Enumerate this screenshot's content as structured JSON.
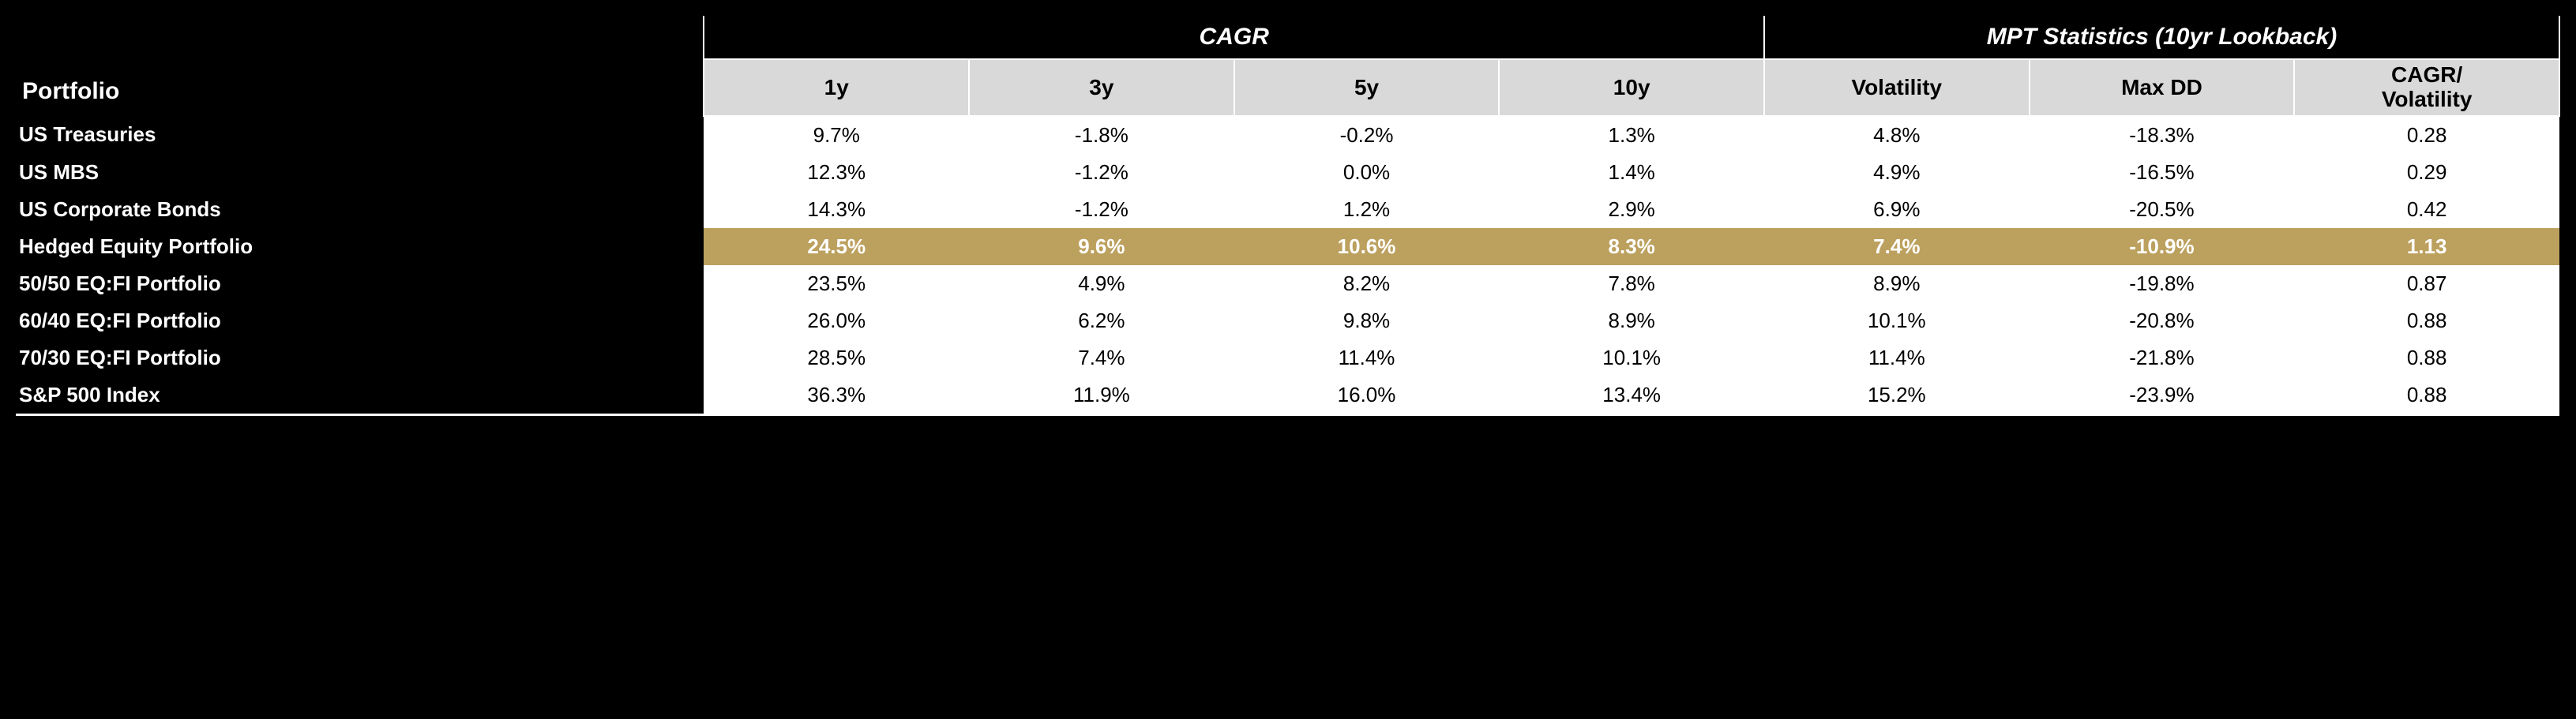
{
  "header": {
    "portfolio_label": "Portfolio",
    "group1_label": "CAGR",
    "group2_label": "MPT Statistics (10yr Lookback)",
    "sub": {
      "c1": "1y",
      "c2": "3y",
      "c3": "5y",
      "c4": "10y",
      "c5": "Volatility",
      "c6": "Max DD",
      "c7_l1": "CAGR/",
      "c7_l2": "Volatility"
    }
  },
  "rows": [
    {
      "label": "US Treasuries",
      "c1": "9.7%",
      "c2": "-1.8%",
      "c3": "-0.2%",
      "c4": "1.3%",
      "c5": "4.8%",
      "c6": "-18.3%",
      "c7": "0.28",
      "hl": false
    },
    {
      "label": "US MBS",
      "c1": "12.3%",
      "c2": "-1.2%",
      "c3": "0.0%",
      "c4": "1.4%",
      "c5": "4.9%",
      "c6": "-16.5%",
      "c7": "0.29",
      "hl": false
    },
    {
      "label": "US Corporate Bonds",
      "c1": "14.3%",
      "c2": "-1.2%",
      "c3": "1.2%",
      "c4": "2.9%",
      "c5": "6.9%",
      "c6": "-20.5%",
      "c7": "0.42",
      "hl": false
    },
    {
      "label": "Hedged Equity Portfolio",
      "c1": "24.5%",
      "c2": "9.6%",
      "c3": "10.6%",
      "c4": "8.3%",
      "c5": "7.4%",
      "c6": "-10.9%",
      "c7": "1.13",
      "hl": true
    },
    {
      "label": "50/50 EQ:FI Portfolio",
      "c1": "23.5%",
      "c2": "4.9%",
      "c3": "8.2%",
      "c4": "7.8%",
      "c5": "8.9%",
      "c6": "-19.8%",
      "c7": "0.87",
      "hl": false
    },
    {
      "label": "60/40 EQ:FI Portfolio",
      "c1": "26.0%",
      "c2": "6.2%",
      "c3": "9.8%",
      "c4": "8.9%",
      "c5": "10.1%",
      "c6": "-20.8%",
      "c7": "0.88",
      "hl": false
    },
    {
      "label": "70/30 EQ:FI Portfolio",
      "c1": "28.5%",
      "c2": "7.4%",
      "c3": "11.4%",
      "c4": "10.1%",
      "c5": "11.4%",
      "c6": "-21.8%",
      "c7": "0.88",
      "hl": false
    },
    {
      "label": "S&P 500 Index",
      "c1": "36.3%",
      "c2": "11.9%",
      "c3": "16.0%",
      "c4": "13.4%",
      "c5": "15.2%",
      "c6": "-23.9%",
      "c7": "0.88",
      "hl": false
    }
  ],
  "style": {
    "background": "#000000",
    "header_bg": "#d9d9d9",
    "data_bg": "#ffffff",
    "highlight_bg": "#bca05e",
    "highlight_fg": "#ffffff",
    "text_color": "#000000",
    "header_text": "#ffffff"
  }
}
